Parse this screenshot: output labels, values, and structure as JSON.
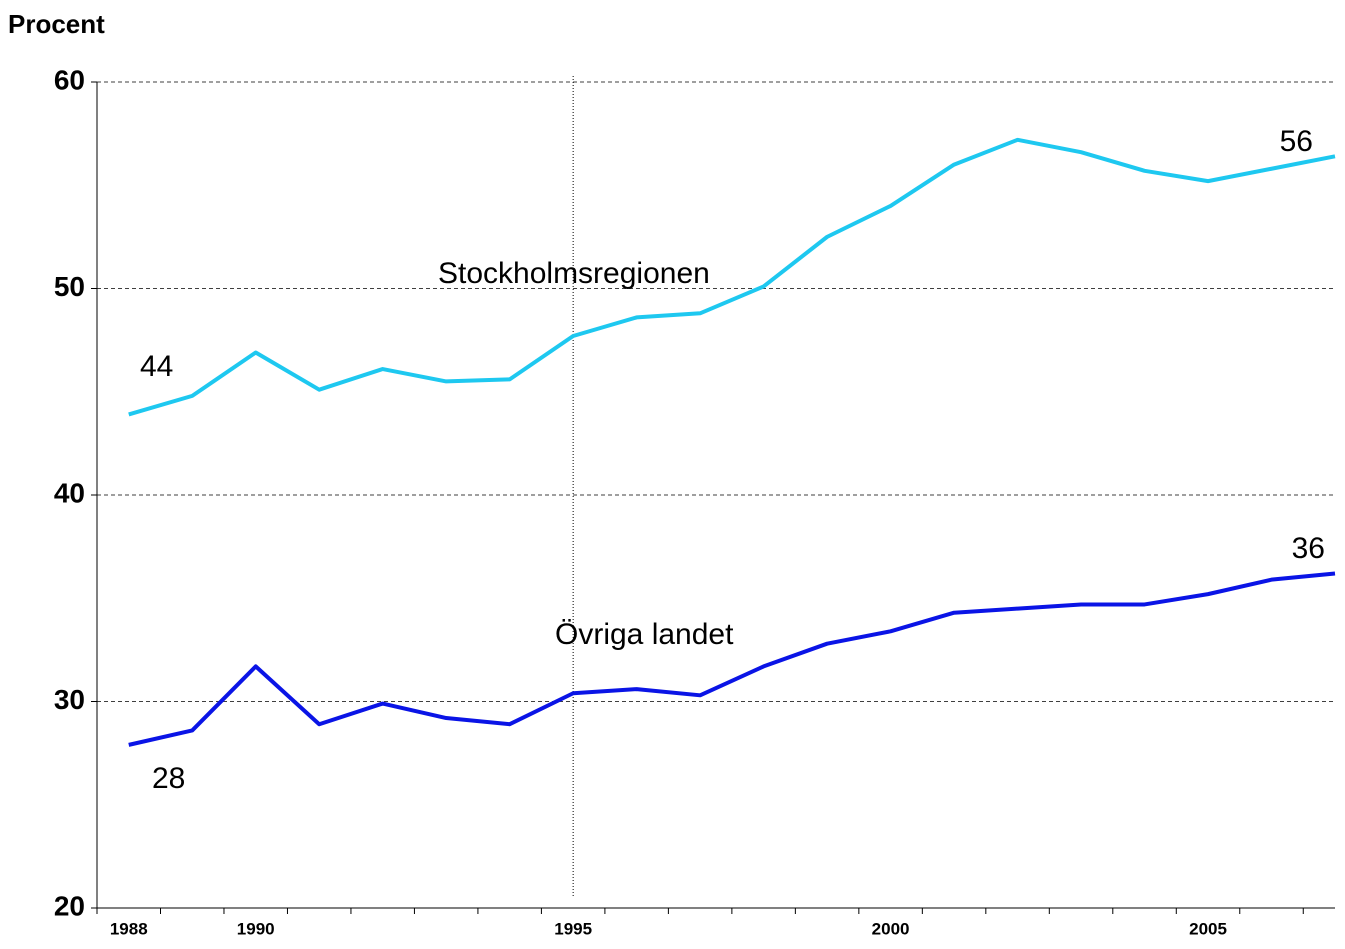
{
  "chart_data": {
    "type": "line",
    "y_label": "Procent",
    "x": [
      1988,
      1989,
      1990,
      1991,
      1992,
      1993,
      1994,
      1995,
      1996,
      1997,
      1998,
      1999,
      2000,
      2001,
      2002,
      2003,
      2004,
      2005,
      2006,
      2007
    ],
    "xlim": [
      1987.5,
      2007
    ],
    "xticks": [
      1988,
      1990,
      1995,
      2000,
      2005
    ],
    "ylim": [
      20,
      60
    ],
    "yticks": [
      20,
      30,
      40,
      50,
      60
    ],
    "grid": true,
    "vline": 1995,
    "series": [
      {
        "name": "Stockholmsregionen",
        "color": "#1ec8f0",
        "values": [
          43.9,
          44.8,
          46.9,
          45.1,
          46.1,
          45.5,
          45.6,
          47.7,
          48.6,
          48.8,
          50.1,
          52.5,
          54.0,
          56.0,
          57.2,
          56.6,
          55.7,
          55.2,
          55.8,
          56.4
        ],
        "value_labels": [
          "44",
          null,
          null,
          null,
          null,
          null,
          null,
          null,
          null,
          null,
          null,
          null,
          null,
          null,
          null,
          null,
          null,
          null,
          null,
          "56"
        ]
      },
      {
        "name": "Övriga landet",
        "color": "#0a14e6",
        "values": [
          27.9,
          28.6,
          31.7,
          28.9,
          29.9,
          29.2,
          28.9,
          30.4,
          30.6,
          30.3,
          31.7,
          32.8,
          33.4,
          34.3,
          34.5,
          34.7,
          34.7,
          35.2,
          35.9,
          36.2
        ],
        "value_labels": [
          "28",
          null,
          null,
          null,
          null,
          null,
          null,
          null,
          null,
          null,
          null,
          null,
          null,
          null,
          null,
          null,
          null,
          null,
          null,
          "36"
        ]
      }
    ]
  }
}
